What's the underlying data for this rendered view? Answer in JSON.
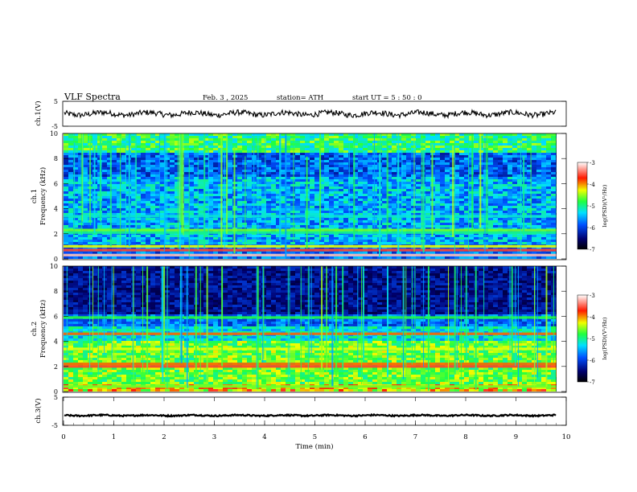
{
  "header": {
    "title": "VLF Spectra",
    "date": "Feb. 3 , 2025",
    "station": "station= ATH",
    "start": "start UT = 5 : 50 : 0"
  },
  "chart_data": [
    {
      "type": "line",
      "name": "ch1-waveform",
      "ylabel": "ch.1(V)",
      "ylim": [
        -5,
        5
      ],
      "yticks": [
        5,
        -5
      ],
      "xlim": [
        0,
        10
      ],
      "baseline": 0,
      "x_end": 9.8
    },
    {
      "type": "heatmap",
      "name": "ch1-spectrogram",
      "ylabel": [
        "ch.1",
        "Frequency (kHz)"
      ],
      "ylim": [
        0,
        10
      ],
      "yticks": [
        0,
        2,
        4,
        6,
        8,
        10
      ],
      "xlim": [
        0,
        10
      ],
      "x_end": 9.8,
      "colorbar": {
        "label": "log(PSD)(V²/Hz)",
        "range": [
          -7,
          -3
        ],
        "ticks": [
          -3,
          -4,
          -5,
          -6,
          -7
        ]
      },
      "bands_kHz": [
        {
          "f": 0.3,
          "level": -3.2
        },
        {
          "f": 0.7,
          "level": -3.6
        },
        {
          "f": 1.0,
          "level": -4.3
        },
        {
          "f": 2.1,
          "level": -5.0
        },
        {
          "f": 2.3,
          "level": -4.6
        },
        {
          "f": 3.4,
          "level": -5.2
        }
      ]
    },
    {
      "type": "heatmap",
      "name": "ch2-spectrogram",
      "ylabel": [
        "ch.2",
        "Frequency (kHz)"
      ],
      "ylim": [
        0,
        10
      ],
      "yticks": [
        0,
        2,
        4,
        6,
        8,
        10
      ],
      "xlim": [
        0,
        10
      ],
      "x_end": 9.8,
      "colorbar": {
        "label": "log(PSD)(V²/Hz)",
        "range": [
          -7,
          -3
        ],
        "ticks": [
          -3,
          -4,
          -5,
          -6,
          -7
        ]
      },
      "bands_kHz": [
        {
          "f": 0.4,
          "level": -4.6
        },
        {
          "f": 2.0,
          "level": -3.6
        },
        {
          "f": 2.2,
          "level": -3.9
        },
        {
          "f": 3.4,
          "level": -4.3
        },
        {
          "f": 4.6,
          "level": -3.9
        },
        {
          "f": 5.9,
          "level": -4.8
        }
      ]
    },
    {
      "type": "line",
      "name": "ch3-waveform",
      "ylabel": "ch.3(V)",
      "ylim": [
        -5,
        5
      ],
      "yticks": [
        5,
        -5
      ],
      "xlim": [
        0,
        10
      ],
      "xticks": [
        0,
        1,
        2,
        3,
        4,
        5,
        6,
        7,
        8,
        9,
        10
      ],
      "xlabel": "Time (min)",
      "baseline": -1.5,
      "x_end": 9.8
    }
  ]
}
